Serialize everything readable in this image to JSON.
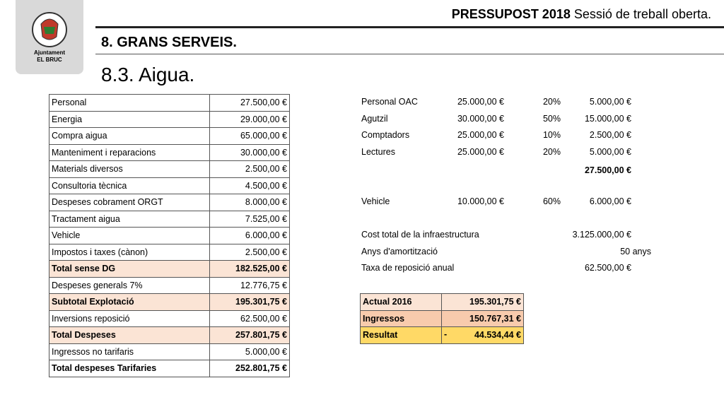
{
  "logo": {
    "line1": "Ajuntament",
    "line2": "EL BRUC"
  },
  "header": {
    "title_bold": "PRESSUPOST 2018",
    "title_rest": "Sessió de treball oberta.",
    "section": "8. GRANS SERVEIS.",
    "subsection": "8.3. Aigua."
  },
  "left_table": {
    "rows": [
      {
        "label": "Personal",
        "amount": "27.500,00 €"
      },
      {
        "label": "Energia",
        "amount": "29.000,00 €"
      },
      {
        "label": "Compra aigua",
        "amount": "65.000,00 €"
      },
      {
        "label": "Manteniment i reparacions",
        "amount": "30.000,00 €"
      },
      {
        "label": "Materials diversos",
        "amount": "2.500,00 €"
      },
      {
        "label": "Consultoria tècnica",
        "amount": "4.500,00 €"
      },
      {
        "label": "Despeses cobrament ORGT",
        "amount": "8.000,00 €"
      },
      {
        "label": "Tractament aigua",
        "amount": "7.525,00 €"
      },
      {
        "label": "Vehicle",
        "amount": "6.000,00 €"
      },
      {
        "label": "Impostos i taxes (cànon)",
        "amount": "2.500,00 €"
      },
      {
        "label": "Total sense DG",
        "amount": "182.525,00 €",
        "bold": true,
        "fill": "#fbe4d5"
      },
      {
        "label": "Despeses generals 7%",
        "amount": "12.776,75 €"
      },
      {
        "label": "Subtotal Explotació",
        "amount": "195.301,75 €",
        "bold": true,
        "fill": "#fbe4d5"
      },
      {
        "label": "Inversions reposició",
        "amount": "62.500,00 €"
      },
      {
        "label": "Total Despeses",
        "amount": "257.801,75 €",
        "bold": true,
        "fill": "#fbe4d5"
      },
      {
        "label": "Ingressos no tarifaris",
        "amount": "5.000,00 €"
      },
      {
        "label": "Total despeses Tarifaries",
        "amount": "252.801,75 €",
        "bold": true
      }
    ]
  },
  "staff": {
    "rows": [
      {
        "name": "Personal OAC",
        "amount": "25.000,00 €",
        "pct": "20%",
        "result": "5.000,00 €"
      },
      {
        "name": "Agutzil",
        "amount": "30.000,00 €",
        "pct": "50%",
        "result": "15.000,00 €"
      },
      {
        "name": "Comptadors",
        "amount": "25.000,00 €",
        "pct": "10%",
        "result": "2.500,00 €"
      },
      {
        "name": "Lectures",
        "amount": "25.000,00 €",
        "pct": "20%",
        "result": "5.000,00 €"
      }
    ],
    "total": "27.500,00 €",
    "vehicle": {
      "name": "Vehicle",
      "amount": "10.000,00 €",
      "pct": "60%",
      "result": "6.000,00 €"
    }
  },
  "infrastructure": {
    "cost": {
      "label": "Cost total de la infraestructura",
      "value": "3.125.000,00 €"
    },
    "years": {
      "label": "Anys d'amortització",
      "value": "50 anys"
    },
    "rate": {
      "label": "Taxa de reposició anual",
      "value": "62.500,00 €"
    }
  },
  "summary": {
    "rows": [
      {
        "label": "Actual 2016",
        "amount": "195.301,75 €",
        "fill": "#fbe4d5"
      },
      {
        "label": "Ingressos",
        "amount": "150.767,31 €",
        "fill": "#f8cbad"
      },
      {
        "label": "Resultat",
        "sign": "-",
        "amount": "44.534,44 €",
        "fill": "#ffd966"
      }
    ]
  }
}
